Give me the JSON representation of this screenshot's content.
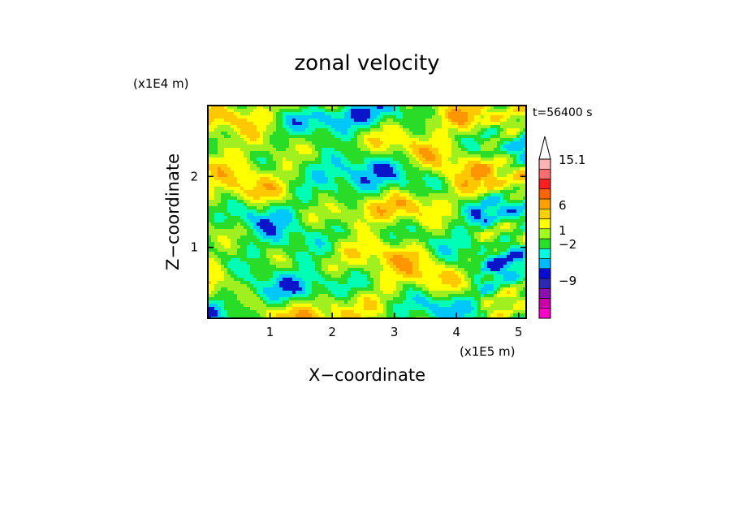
{
  "chart_data": {
    "type": "heatmap",
    "title": "zonal velocity",
    "xlabel": "X−coordinate",
    "ylabel": "Z−coordinate",
    "x_scale_label": "(x1E5 m)",
    "y_scale_label": "(x1E4 m)",
    "time_label": "t=56400 s",
    "xlim": [
      0,
      5.12
    ],
    "ylim": [
      0,
      3.0
    ],
    "x_ticks": [
      "1",
      "2",
      "3",
      "4",
      "5"
    ],
    "y_ticks": [
      "1",
      "2"
    ],
    "x_tick_values": [
      1,
      2,
      3,
      4,
      5
    ],
    "y_tick_values": [
      1,
      2
    ],
    "colorbar": {
      "colors": [
        "#ff00c8",
        "#cc00aa",
        "#8a10b0",
        "#2a2ab4",
        "#0a0ad2",
        "#00b8ff",
        "#00ffe0",
        "#28e028",
        "#a0ff20",
        "#ffff00",
        "#ffd000",
        "#ffa000",
        "#ff6400",
        "#ff1e1e",
        "#ff6e6e",
        "#ffb4b4"
      ],
      "labels": [
        "−9",
        "−2",
        "1",
        "6",
        "15.1"
      ],
      "label_values": [
        -9,
        -2,
        1,
        6,
        15.1
      ],
      "extend": "max"
    },
    "field_palette": [
      "#0a14c8",
      "#00c8ff",
      "#00ffb4",
      "#28dc28",
      "#a0f020",
      "#ffff00",
      "#ffc800",
      "#ff9600"
    ],
    "grid": false
  }
}
